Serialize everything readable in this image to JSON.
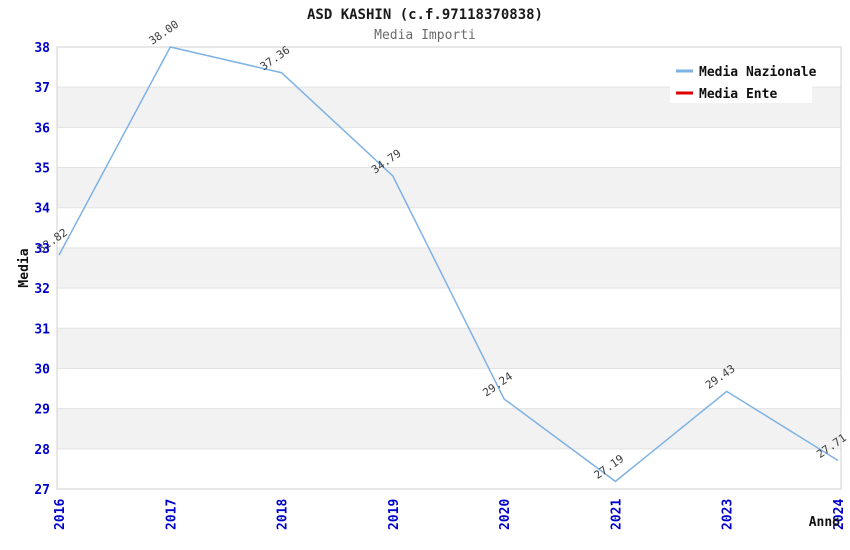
{
  "chart_data": {
    "type": "line",
    "title": "ASD KASHIN (c.f.97118370838)",
    "subtitle": "Media Importi",
    "xlabel": "Anno",
    "ylabel": "Media",
    "categories": [
      "2016",
      "2017",
      "2018",
      "2019",
      "2020",
      "2021",
      "2023",
      "2024"
    ],
    "series": [
      {
        "name": "Media Nazionale",
        "color": "#7eb2e4",
        "values": [
          32.82,
          38.0,
          37.36,
          34.79,
          29.24,
          27.19,
          29.43,
          27.71
        ]
      },
      {
        "name": "Media Ente",
        "color": "#dd0000",
        "values": []
      }
    ],
    "ylim": [
      27,
      38
    ],
    "y_ticks": [
      27,
      28,
      29,
      30,
      31,
      32,
      33,
      34,
      35,
      36,
      37,
      38
    ],
    "grid": "horizontal-bands",
    "legend_position": "top-right",
    "colors": {
      "tick_label": "#0000cc",
      "band": "#f2f2f2",
      "gridline": "#e3e3e3",
      "plot_border": "#d0d0d0",
      "data_label": "#3a3a3a"
    }
  }
}
